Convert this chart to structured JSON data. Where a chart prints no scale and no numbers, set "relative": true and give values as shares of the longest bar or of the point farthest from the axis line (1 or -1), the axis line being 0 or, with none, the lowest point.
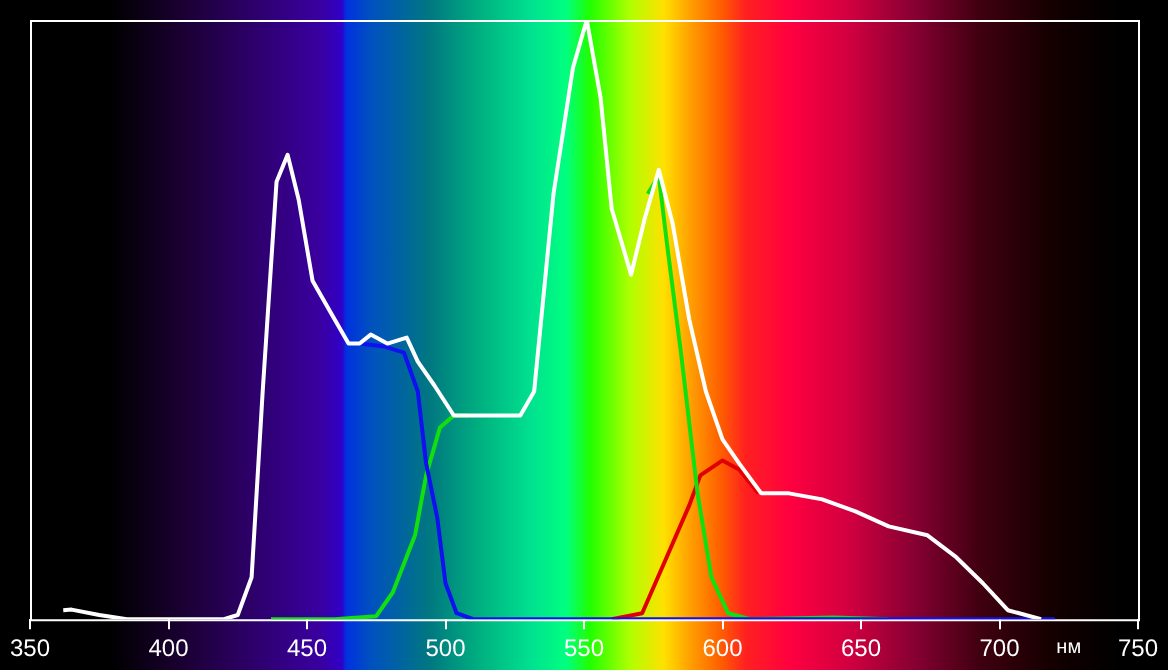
{
  "chart_data": {
    "type": "line",
    "xlabel": "нм",
    "relative": true,
    "xlim": [
      350,
      750
    ],
    "xticks": [
      350,
      400,
      450,
      500,
      550,
      600,
      650,
      700,
      750
    ],
    "grid": false,
    "legend": false,
    "marker": "none",
    "series": [
      {
        "color": "#ffffff",
        "x": [
          362,
          365,
          375,
          385,
          420,
          425,
          430,
          434,
          439,
          443,
          447,
          452,
          460,
          465,
          469,
          473,
          479,
          486,
          490,
          496,
          503,
          508,
          527,
          532,
          539,
          546,
          551,
          556,
          560,
          567,
          572,
          577,
          582,
          588,
          594,
          600,
          606,
          614,
          624,
          636,
          648,
          660,
          674,
          684,
          694,
          703,
          715
        ],
        "values": [
          0.015,
          0.016,
          0.007,
          0,
          0,
          0.007,
          0.07,
          0.38,
          0.73,
          0.775,
          0.7,
          0.565,
          0.5,
          0.46,
          0.46,
          0.475,
          0.46,
          0.47,
          0.43,
          0.39,
          0.34,
          0.34,
          0.34,
          0.38,
          0.71,
          0.92,
          1,
          0.87,
          0.685,
          0.575,
          0.67,
          0.75,
          0.66,
          0.5,
          0.38,
          0.3,
          0.26,
          0.21,
          0.21,
          0.2,
          0.18,
          0.155,
          0.14,
          0.105,
          0.06,
          0.015,
          0
        ]
      },
      {
        "color": "#1010f0",
        "x": [
          469,
          478,
          485,
          490,
          493,
          497,
          500,
          504,
          510,
          560,
          620,
          720
        ],
        "values": [
          0.46,
          0.455,
          0.445,
          0.38,
          0.26,
          0.17,
          0.06,
          0.01,
          0,
          0,
          0,
          0
        ]
      },
      {
        "color": "#10e010",
        "x": [
          437,
          460,
          475,
          481,
          489,
          493,
          498,
          503,
          508,
          540,
          573,
          577,
          580,
          585,
          591,
          596,
          602,
          610,
          640,
          660
        ],
        "values": [
          0,
          0,
          0.005,
          0.045,
          0.14,
          0.24,
          0.32,
          0.34,
          0.34,
          null,
          0.71,
          0.74,
          0.625,
          0.445,
          0.21,
          0.07,
          0.01,
          0,
          0.003,
          0
        ]
      },
      {
        "color": "#e00000",
        "x": [
          560,
          571,
          580,
          588,
          592,
          600,
          606,
          613
        ],
        "values": [
          0,
          0.01,
          0.105,
          0.19,
          0.24,
          0.265,
          0.25,
          0.21
        ]
      }
    ]
  }
}
